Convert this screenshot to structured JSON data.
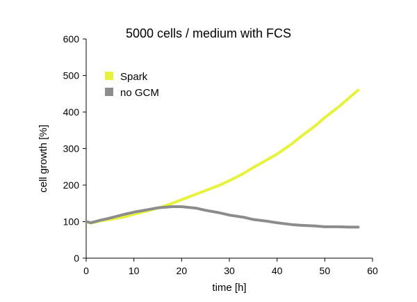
{
  "chart_data": {
    "type": "line",
    "title": "5000 cells / medium with FCS",
    "xlabel": "time [h]",
    "ylabel": "cell growth [%]",
    "xlim": [
      0,
      60
    ],
    "ylim": [
      0,
      600
    ],
    "xticks": [
      0,
      10,
      20,
      30,
      40,
      50,
      60
    ],
    "yticks": [
      0,
      100,
      200,
      300,
      400,
      500,
      600
    ],
    "grid": false,
    "legend_position": "top-left",
    "series": [
      {
        "name": "Spark",
        "color": "#e6f23c",
        "x": [
          0,
          1,
          3,
          5,
          8,
          10,
          13,
          15,
          18,
          20,
          23,
          25,
          28,
          30,
          33,
          35,
          38,
          40,
          43,
          45,
          48,
          50,
          53,
          55,
          57
        ],
        "y": [
          100,
          96,
          102,
          106,
          113,
          120,
          130,
          137,
          150,
          160,
          175,
          185,
          200,
          212,
          232,
          248,
          270,
          285,
          312,
          333,
          362,
          385,
          415,
          438,
          460
        ]
      },
      {
        "name": "no GCM",
        "color": "#8c8c8c",
        "x": [
          0,
          1,
          3,
          5,
          8,
          10,
          13,
          15,
          18,
          20,
          23,
          25,
          28,
          30,
          33,
          35,
          38,
          40,
          43,
          45,
          48,
          50,
          53,
          55,
          57
        ],
        "y": [
          100,
          97,
          104,
          110,
          120,
          126,
          133,
          138,
          141,
          141,
          137,
          131,
          124,
          118,
          112,
          106,
          101,
          97,
          92,
          90,
          88,
          86,
          86,
          85,
          85
        ]
      }
    ]
  }
}
